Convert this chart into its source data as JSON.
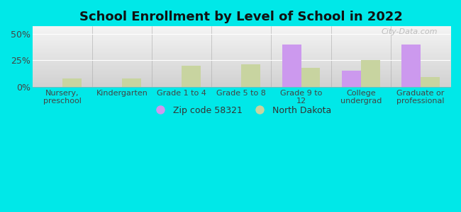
{
  "title": "School Enrollment by Level of School in 2022",
  "categories": [
    "Nursery,\npreschool",
    "Kindergarten",
    "Grade 1 to 4",
    "Grade 5 to 8",
    "Grade 9 to\n12",
    "College\nundergrad",
    "Graduate or\nprofessional"
  ],
  "zip_values": [
    0,
    0,
    0,
    0,
    40,
    15,
    40
  ],
  "nd_values": [
    8,
    8,
    20,
    21,
    18,
    25,
    9
  ],
  "zip_color": "#cc99ee",
  "nd_color": "#c8d4a0",
  "background_outer": "#00e8e8",
  "background_inner_top": "#f5ffff",
  "background_inner_bottom": "#c8eecc",
  "ylabel_ticks": [
    0,
    25,
    50
  ],
  "ylabel_labels": [
    "0%",
    "25%",
    "50%"
  ],
  "ylim": [
    0,
    57
  ],
  "bar_width": 0.32,
  "legend_zip": "Zip code 58321",
  "legend_nd": "North Dakota",
  "watermark": "City-Data.com"
}
